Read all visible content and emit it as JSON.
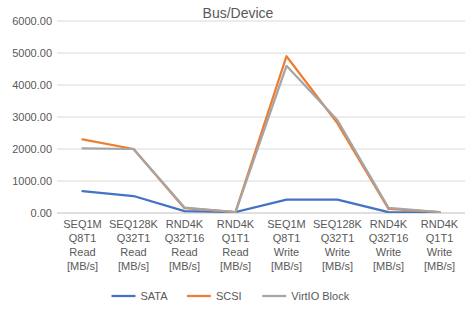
{
  "chart_data": {
    "type": "line",
    "title": "Bus/Device",
    "categories": [
      "SEQ1M Q8T1 Read [MB/s]",
      "SEQ128K Q32T1 Read [MB/s]",
      "RND4K Q32T16 Read [MB/s]",
      "RND4K Q1T1 Read [MB/s]",
      "SEQ1M Q8T1 Write [MB/s]",
      "SEQ128K Q32T1 Write [MB/s]",
      "RND4K Q32T16 Write [MB/s]",
      "RND4K Q1T1 Write [MB/s]"
    ],
    "series": [
      {
        "name": "SATA",
        "color": "#4472c4",
        "values": [
          680,
          530,
          60,
          30,
          420,
          420,
          25,
          15
        ]
      },
      {
        "name": "SCSI",
        "color": "#ed7d31",
        "values": [
          2300,
          2000,
          150,
          30,
          4900,
          2800,
          130,
          30
        ]
      },
      {
        "name": "VirtIO Block",
        "color": "#a5a5a5",
        "values": [
          2020,
          2000,
          170,
          30,
          4600,
          2900,
          160,
          30
        ]
      }
    ],
    "ylim": [
      0,
      6000
    ],
    "yticks": [
      {
        "value": 0,
        "label": "0.00"
      },
      {
        "value": 1000,
        "label": "1000.00"
      },
      {
        "value": 2000,
        "label": "2000.00"
      },
      {
        "value": 3000,
        "label": "3000.00"
      },
      {
        "value": 4000,
        "label": "4000.00"
      },
      {
        "value": 5000,
        "label": "5000.00"
      },
      {
        "value": 6000,
        "label": "6000.00"
      }
    ],
    "grid": true,
    "legend": "bottom"
  }
}
